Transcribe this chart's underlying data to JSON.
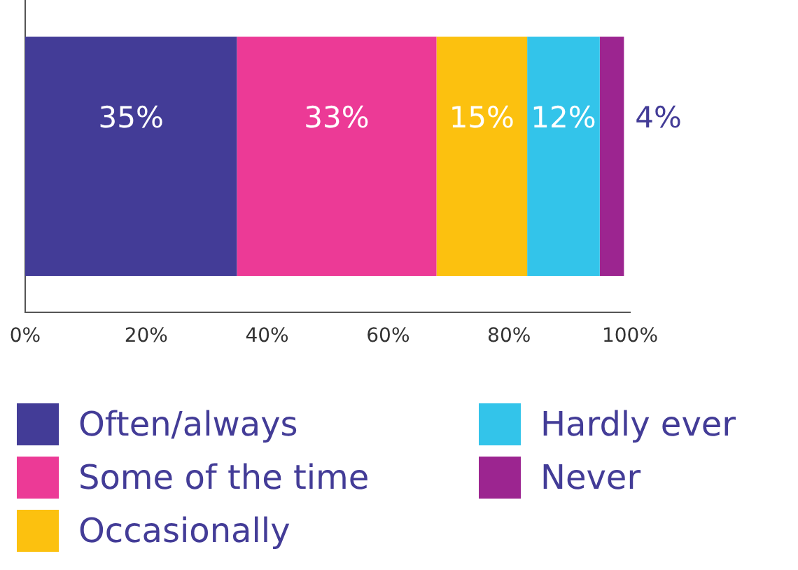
{
  "chart_data": {
    "type": "bar",
    "orientation": "horizontal",
    "stacked": true,
    "categories": [
      null
    ],
    "series": [
      {
        "name": "Often/always",
        "color": "#433c97",
        "values": [
          35
        ],
        "value_labels": [
          "35%"
        ]
      },
      {
        "name": "Some of the time",
        "color": "#ec3a96",
        "values": [
          33
        ],
        "value_labels": [
          "33%"
        ]
      },
      {
        "name": "Occasionally",
        "color": "#fcc10f",
        "values": [
          15
        ],
        "value_labels": [
          "15%"
        ]
      },
      {
        "name": "Hardly ever",
        "color": "#33c4ea",
        "values": [
          12
        ],
        "value_labels": [
          "12%"
        ]
      },
      {
        "name": "Never",
        "color": "#9c2590",
        "values": [
          4
        ],
        "value_labels": [
          "4%"
        ]
      }
    ],
    "xlim": [
      0,
      100
    ],
    "xticks": [
      {
        "value": 0,
        "label": "0%"
      },
      {
        "value": 20,
        "label": "20%"
      },
      {
        "value": 40,
        "label": "40%"
      },
      {
        "value": 60,
        "label": "60%"
      },
      {
        "value": 80,
        "label": "80%"
      },
      {
        "value": 100,
        "label": "100%"
      }
    ],
    "grid": false,
    "legend": "bottom"
  }
}
